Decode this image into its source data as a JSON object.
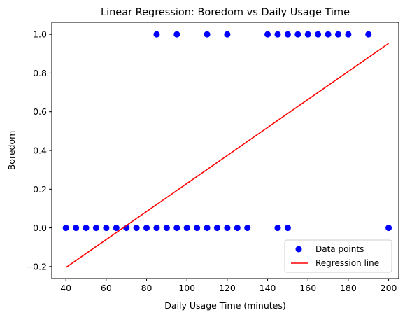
{
  "chart_data": {
    "type": "scatter",
    "title": "Linear Regression: Boredom vs Daily Usage Time",
    "xlabel": "Daily Usage Time (minutes)",
    "ylabel": "Boredom",
    "xlim": [
      33,
      205
    ],
    "ylim": [
      -0.262,
      1.062
    ],
    "xticks": [
      40,
      60,
      80,
      100,
      120,
      140,
      160,
      180,
      200
    ],
    "yticks": [
      -0.2,
      0.0,
      0.2,
      0.4,
      0.6,
      0.8,
      1.0
    ],
    "ytick_labels": [
      "−0.2",
      "0.0",
      "0.2",
      "0.4",
      "0.6",
      "0.8",
      "1.0"
    ],
    "grid": false,
    "legend_position": "lower right",
    "series": [
      {
        "name": "Data points",
        "kind": "scatter",
        "color": "#0000ff",
        "points": [
          [
            40,
            0
          ],
          [
            45,
            0
          ],
          [
            50,
            0
          ],
          [
            55,
            0
          ],
          [
            60,
            0
          ],
          [
            65,
            0
          ],
          [
            70,
            0
          ],
          [
            75,
            0
          ],
          [
            80,
            0
          ],
          [
            85,
            0
          ],
          [
            90,
            0
          ],
          [
            95,
            0
          ],
          [
            100,
            0
          ],
          [
            105,
            0
          ],
          [
            110,
            0
          ],
          [
            115,
            0
          ],
          [
            120,
            0
          ],
          [
            125,
            0
          ],
          [
            130,
            0
          ],
          [
            145,
            0
          ],
          [
            150,
            0
          ],
          [
            200,
            0
          ],
          [
            85,
            1
          ],
          [
            95,
            1
          ],
          [
            110,
            1
          ],
          [
            120,
            1
          ],
          [
            140,
            1
          ],
          [
            145,
            1
          ],
          [
            150,
            1
          ],
          [
            155,
            1
          ],
          [
            160,
            1
          ],
          [
            165,
            1
          ],
          [
            170,
            1
          ],
          [
            175,
            1
          ],
          [
            180,
            1
          ],
          [
            190,
            1
          ]
        ]
      },
      {
        "name": "Regression line",
        "kind": "line",
        "color": "#ff0000",
        "points": [
          [
            40,
            -0.205
          ],
          [
            200,
            0.953
          ]
        ]
      }
    ]
  }
}
